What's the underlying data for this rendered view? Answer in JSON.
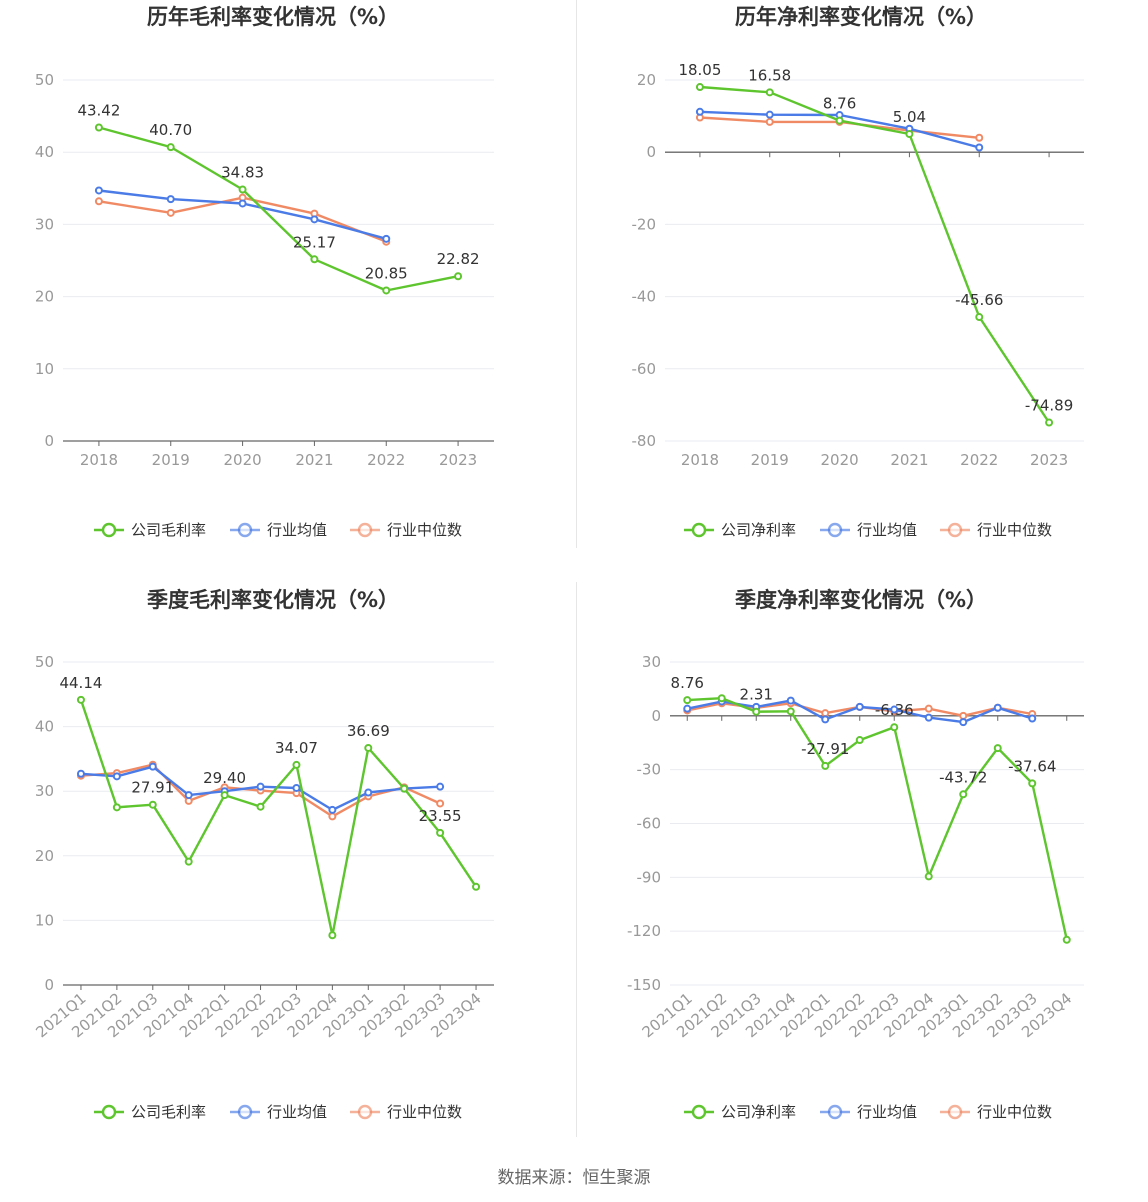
{
  "source": "数据来源：恒生聚源",
  "colors": {
    "company": "#5ec52e",
    "avg": "#4a7be6",
    "median": "#f08a65",
    "axis": "#666666",
    "grid": "#e9ebf1"
  },
  "chart_data": [
    {
      "type": "line",
      "title": "历年毛利率变化情况（%）",
      "categories": [
        "2018",
        "2019",
        "2020",
        "2021",
        "2022",
        "2023"
      ],
      "ylim": [
        0,
        50
      ],
      "yticks": [
        0,
        10,
        20,
        30,
        40,
        50
      ],
      "ytick_labels": [
        "0",
        "10",
        "20",
        "30",
        "40",
        "50"
      ],
      "series": [
        {
          "name": "公司毛利率",
          "key": "company",
          "values": [
            43.42,
            40.7,
            34.83,
            25.17,
            20.85,
            22.82
          ],
          "labels": [
            "43.42",
            "40.70",
            "34.83",
            "25.17",
            "20.85",
            "22.82"
          ]
        },
        {
          "name": "行业均值",
          "key": "avg",
          "values": [
            34.7,
            33.5,
            32.9,
            30.7,
            28.0,
            null
          ]
        },
        {
          "name": "行业中位数",
          "key": "median",
          "values": [
            33.2,
            31.6,
            33.7,
            31.5,
            27.6,
            null
          ]
        }
      ]
    },
    {
      "type": "line",
      "title": "历年净利率变化情况（%）",
      "categories": [
        "2018",
        "2019",
        "2020",
        "2021",
        "2022",
        "2023"
      ],
      "ylim": [
        -80,
        20
      ],
      "yticks": [
        -80,
        -60,
        -40,
        -20,
        0,
        20
      ],
      "ytick_labels": [
        "-80",
        "-60",
        "-40",
        "-20",
        "0",
        "20"
      ],
      "series": [
        {
          "name": "公司净利率",
          "key": "company",
          "values": [
            18.05,
            16.58,
            8.76,
            5.04,
            -45.66,
            -74.89
          ],
          "labels": [
            "18.05",
            "16.58",
            "8.76",
            "5.04",
            "-45.66",
            "-74.89"
          ]
        },
        {
          "name": "行业均值",
          "key": "avg",
          "values": [
            11.2,
            10.4,
            10.3,
            6.5,
            1.3,
            null
          ]
        },
        {
          "name": "行业中位数",
          "key": "median",
          "values": [
            9.6,
            8.4,
            8.4,
            6.0,
            4.0,
            null
          ]
        }
      ]
    },
    {
      "type": "line",
      "title": "季度毛利率变化情况（%）",
      "categories": [
        "2021Q1",
        "2021Q2",
        "2021Q3",
        "2021Q4",
        "2022Q1",
        "2022Q2",
        "2022Q3",
        "2022Q4",
        "2023Q1",
        "2023Q2",
        "2023Q3",
        "2023Q4"
      ],
      "ylim": [
        0,
        50
      ],
      "yticks": [
        0,
        10,
        20,
        30,
        40,
        50
      ],
      "ytick_labels": [
        "0",
        "10",
        "20",
        "30",
        "40",
        "50"
      ],
      "series": [
        {
          "name": "公司毛利率",
          "key": "company",
          "values": [
            44.14,
            27.5,
            27.91,
            19.1,
            29.4,
            27.6,
            34.07,
            7.7,
            36.69,
            30.4,
            23.55,
            15.2
          ],
          "labels": [
            "44.14",
            null,
            "27.91",
            null,
            "29.40",
            null,
            "34.07",
            null,
            "36.69",
            null,
            "23.55",
            null
          ]
        },
        {
          "name": "行业均值",
          "key": "avg",
          "values": [
            32.7,
            32.3,
            33.8,
            29.4,
            30.0,
            30.7,
            30.5,
            27.1,
            29.8,
            30.4,
            30.7,
            null
          ]
        },
        {
          "name": "行业中位数",
          "key": "median",
          "values": [
            32.4,
            32.8,
            34.1,
            28.5,
            30.6,
            30.1,
            29.7,
            26.1,
            29.2,
            30.6,
            28.1,
            null
          ]
        }
      ]
    },
    {
      "type": "line",
      "title": "季度净利率变化情况（%）",
      "categories": [
        "2021Q1",
        "2021Q2",
        "2021Q3",
        "2021Q4",
        "2022Q1",
        "2022Q2",
        "2022Q3",
        "2022Q4",
        "2023Q1",
        "2023Q2",
        "2023Q3",
        "2023Q4"
      ],
      "ylim": [
        -150,
        30
      ],
      "yticks": [
        -150,
        -120,
        -90,
        -60,
        -30,
        0,
        30
      ],
      "ytick_labels": [
        "-150",
        "-120",
        "-90",
        "-60",
        "-30",
        "0",
        "30"
      ],
      "series": [
        {
          "name": "公司净利率",
          "key": "company",
          "values": [
            8.76,
            9.8,
            2.31,
            2.5,
            -27.91,
            -13.5,
            -6.36,
            -89.5,
            -43.72,
            -18.0,
            -37.64,
            -124.8
          ],
          "labels": [
            "8.76",
            null,
            "2.31",
            null,
            "-27.91",
            null,
            "-6.36",
            null,
            "-43.72",
            null,
            "-37.64",
            null
          ]
        },
        {
          "name": "行业均值",
          "key": "avg",
          "values": [
            4.0,
            8.0,
            5.0,
            8.5,
            -2.0,
            5.0,
            3.5,
            -1.0,
            -3.5,
            4.5,
            -1.5,
            null
          ]
        },
        {
          "name": "行业中位数",
          "key": "median",
          "values": [
            3.0,
            7.0,
            4.5,
            7.0,
            1.5,
            5.0,
            2.5,
            4.0,
            0.0,
            4.5,
            1.0,
            null
          ]
        }
      ]
    }
  ]
}
